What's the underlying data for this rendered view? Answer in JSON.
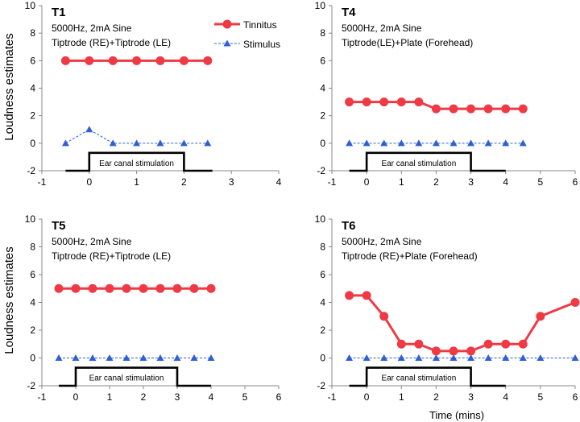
{
  "figure": {
    "shared_ylabel": "Loudness estimates",
    "shared_xlabel": "Time (mins)"
  },
  "legend": {
    "tinnitus": "Tinnitus",
    "stimulus": "Stimulus"
  },
  "colors": {
    "tinnitus": "#ef3a45",
    "stimulus": "#2f5fd6",
    "stim_bar": "#000000",
    "axis": "#888888"
  },
  "chart_data": [
    {
      "id": "T1",
      "type": "line",
      "title": "T1",
      "annotation_lines": [
        "5000Hz, 2mA Sine",
        "Tiptrode (RE)+Tiptrode (LE)"
      ],
      "xlim": [
        -1,
        4
      ],
      "ylim": [
        -2,
        10
      ],
      "xticks": [
        -1,
        0,
        1,
        2,
        3,
        4
      ],
      "yticks": [
        -2,
        0,
        2,
        4,
        6,
        8,
        10
      ],
      "ylabel": "Loudness estimates",
      "xlabel": "",
      "series": [
        {
          "name": "Tinnitus",
          "x": [
            -0.5,
            0,
            0.5,
            1,
            1.5,
            2,
            2.5
          ],
          "values": [
            6,
            6,
            6,
            6,
            6,
            6,
            6
          ]
        },
        {
          "name": "Stimulus",
          "x": [
            -0.5,
            0,
            0.5,
            1,
            1.5,
            2,
            2.5
          ],
          "values": [
            0,
            1,
            0,
            0,
            0,
            0,
            0
          ]
        }
      ],
      "stimulation": {
        "label": "Ear canal stimulation",
        "x_start": -0.5,
        "on": 0,
        "off": 2,
        "x_end": 2.6,
        "low": -2,
        "high": -0.7
      }
    },
    {
      "id": "T4",
      "type": "line",
      "title": "T4",
      "annotation_lines": [
        "5000Hz, 2mA Sine",
        "Tiptrode(LE)+Plate (Forehead)"
      ],
      "xlim": [
        -1,
        6
      ],
      "ylim": [
        -2,
        10
      ],
      "xticks": [
        -1,
        0,
        1,
        2,
        3,
        4,
        5,
        6
      ],
      "yticks": [
        -2,
        0,
        2,
        4,
        6,
        8,
        10
      ],
      "ylabel": "",
      "xlabel": "",
      "series": [
        {
          "name": "Tinnitus",
          "x": [
            -0.5,
            0,
            0.5,
            1,
            1.5,
            2,
            2.5,
            3,
            3.5,
            4,
            4.5
          ],
          "values": [
            3,
            3,
            3,
            3,
            3,
            2.5,
            2.5,
            2.5,
            2.5,
            2.5,
            2.5
          ]
        },
        {
          "name": "Stimulus",
          "x": [
            -0.5,
            0,
            0.5,
            1,
            1.5,
            2,
            2.5,
            3,
            3.5,
            4,
            4.5
          ],
          "values": [
            0,
            0,
            0,
            0,
            0,
            0,
            0,
            0,
            0,
            0,
            0
          ]
        }
      ],
      "stimulation": {
        "label": "Ear canal stimulation",
        "x_start": -0.5,
        "on": 0,
        "off": 3,
        "x_end": 4,
        "low": -2,
        "high": -0.7
      }
    },
    {
      "id": "T5",
      "type": "line",
      "title": "T5",
      "annotation_lines": [
        "5000Hz, 2mA Sine",
        "Tiptrode (RE)+Tiptrode (LE)"
      ],
      "xlim": [
        -1,
        6
      ],
      "ylim": [
        -2,
        10
      ],
      "xticks": [
        -1,
        0,
        1,
        2,
        3,
        4,
        5,
        6
      ],
      "yticks": [
        -2,
        0,
        2,
        4,
        6,
        8,
        10
      ],
      "ylabel": "Loudness estimates",
      "xlabel": "",
      "series": [
        {
          "name": "Tinnitus",
          "x": [
            -0.5,
            0,
            0.5,
            1,
            1.5,
            2,
            2.5,
            3,
            3.5,
            4
          ],
          "values": [
            5,
            5,
            5,
            5,
            5,
            5,
            5,
            5,
            5,
            5
          ]
        },
        {
          "name": "Stimulus",
          "x": [
            -0.5,
            0,
            0.5,
            1,
            1.5,
            2,
            2.5,
            3,
            3.5,
            4
          ],
          "values": [
            0,
            0,
            0,
            0,
            0,
            0,
            0,
            0,
            0,
            0
          ]
        }
      ],
      "stimulation": {
        "label": "Ear canal stimulation",
        "x_start": -0.5,
        "on": 0,
        "off": 3,
        "x_end": 4,
        "low": -2,
        "high": -0.7
      }
    },
    {
      "id": "T6",
      "type": "line",
      "title": "T6",
      "annotation_lines": [
        "5000Hz, 2mA Sine",
        "Tiptrode (RE)+Plate (Forehead)"
      ],
      "xlim": [
        -1,
        6
      ],
      "ylim": [
        -2,
        10
      ],
      "xticks": [
        -1,
        0,
        1,
        2,
        3,
        4,
        5,
        6
      ],
      "yticks": [
        -2,
        0,
        2,
        4,
        6,
        8,
        10
      ],
      "ylabel": "",
      "xlabel": "Time (mins)",
      "series": [
        {
          "name": "Tinnitus",
          "x": [
            -0.5,
            0,
            0.5,
            1,
            1.5,
            2,
            2.5,
            3,
            3.5,
            4,
            4.5,
            5,
            6
          ],
          "values": [
            4.5,
            4.5,
            3,
            1,
            1,
            0.5,
            0.5,
            0.5,
            1,
            1,
            1,
            3,
            4
          ]
        },
        {
          "name": "Stimulus",
          "x": [
            -0.5,
            0,
            0.5,
            1,
            1.5,
            2,
            2.5,
            3,
            3.5,
            4,
            4.5,
            5,
            6
          ],
          "values": [
            0,
            0,
            0,
            0,
            0,
            0,
            0,
            0,
            0,
            0,
            0,
            0,
            0
          ]
        }
      ],
      "stimulation": {
        "label": "Ear canal stimulation",
        "x_start": -0.5,
        "on": 0,
        "off": 3,
        "x_end": 4,
        "low": -2,
        "high": -0.7
      }
    }
  ]
}
